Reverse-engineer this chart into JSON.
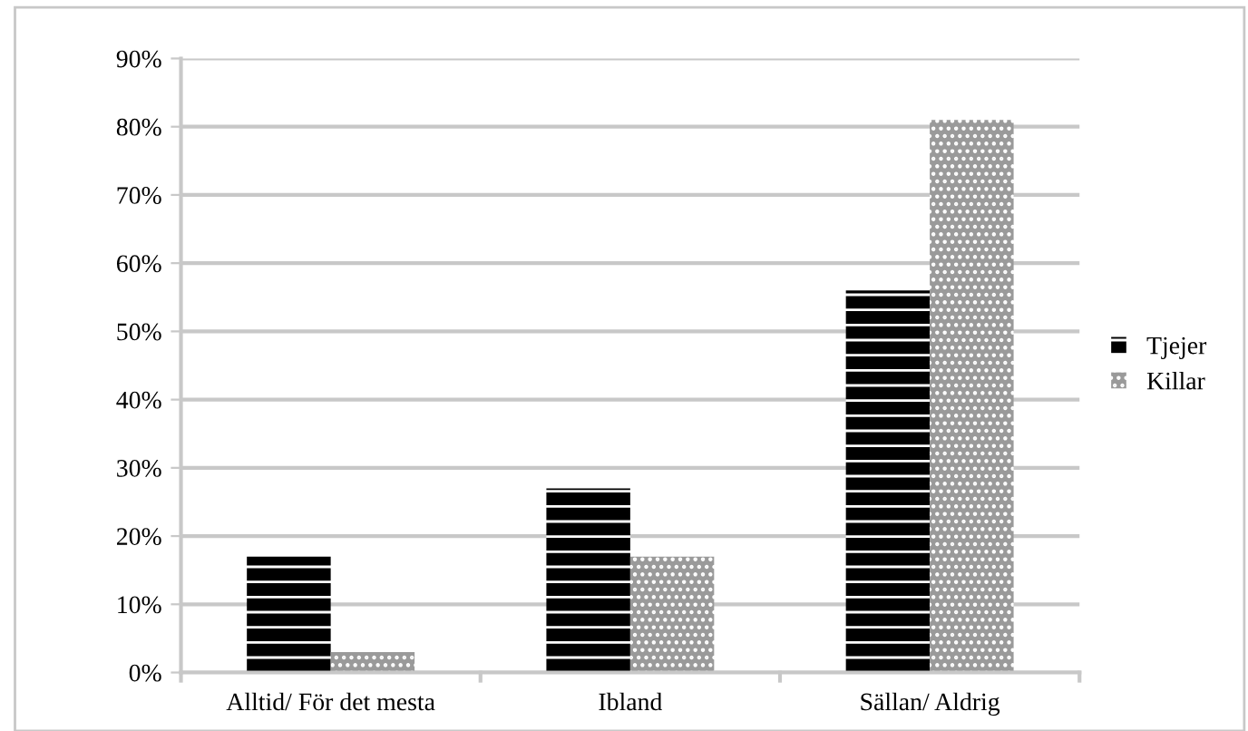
{
  "chart_data": {
    "type": "bar",
    "categories": [
      "Alltid/ För det mesta",
      "Ibland",
      "Sällan/ Aldrig"
    ],
    "series": [
      {
        "name": "Tjejer",
        "color": "#000000",
        "values": [
          17,
          27,
          56
        ]
      },
      {
        "name": "Killar",
        "color": "#9a9a9a",
        "values": [
          3,
          17,
          81
        ]
      }
    ],
    "ylim": [
      0,
      90
    ],
    "yticks": [
      {
        "value": 0,
        "label": "0%"
      },
      {
        "value": 10,
        "label": "10%"
      },
      {
        "value": 20,
        "label": "20%"
      },
      {
        "value": 30,
        "label": "30%"
      },
      {
        "value": 40,
        "label": "40%"
      },
      {
        "value": 50,
        "label": "50%"
      },
      {
        "value": 60,
        "label": "60%"
      },
      {
        "value": 70,
        "label": "70%"
      },
      {
        "value": 80,
        "label": "80%"
      },
      {
        "value": 90,
        "label": "90%"
      }
    ],
    "grid": "y",
    "legend": "right"
  }
}
